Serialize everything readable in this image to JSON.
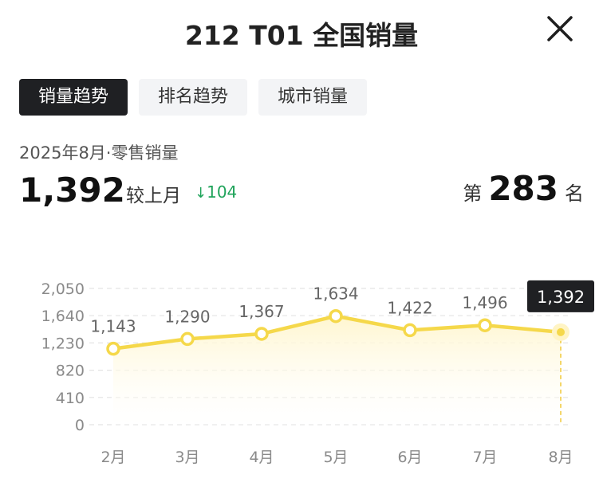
{
  "header": {
    "title": "212 T01 全国销量",
    "close_icon": "close-icon"
  },
  "tabs": [
    {
      "label": "销量趋势",
      "active": true
    },
    {
      "label": "排名趋势",
      "active": false
    },
    {
      "label": "城市销量",
      "active": false
    }
  ],
  "summary": {
    "period": "2025年8月·零售销量",
    "sales": "1,392",
    "compare_label": "较上月",
    "change_arrow": "↓",
    "change_value": "104",
    "rank_prefix": "第",
    "rank_value": "283",
    "rank_suffix": "名"
  },
  "colors": {
    "line": "#f5d84a",
    "area": "#fff6cf",
    "down": "#1fa35a",
    "tab_active": "#1f2023"
  },
  "chart_data": {
    "type": "area",
    "categories": [
      "2月",
      "3月",
      "4月",
      "5月",
      "6月",
      "7月",
      "8月"
    ],
    "values": [
      1143,
      1290,
      1367,
      1634,
      1422,
      1496,
      1392
    ],
    "data_labels": [
      "1,143",
      "1,290",
      "1,367",
      "1,634",
      "1,422",
      "1,496",
      "1,392"
    ],
    "y_ticks": [
      "2,050",
      "1,640",
      "1,230",
      "820",
      "410",
      "0"
    ],
    "y_tick_values": [
      2050,
      1640,
      1230,
      820,
      410,
      0
    ],
    "ylim": [
      0,
      2050
    ],
    "highlight_index": 6,
    "grid": true
  }
}
